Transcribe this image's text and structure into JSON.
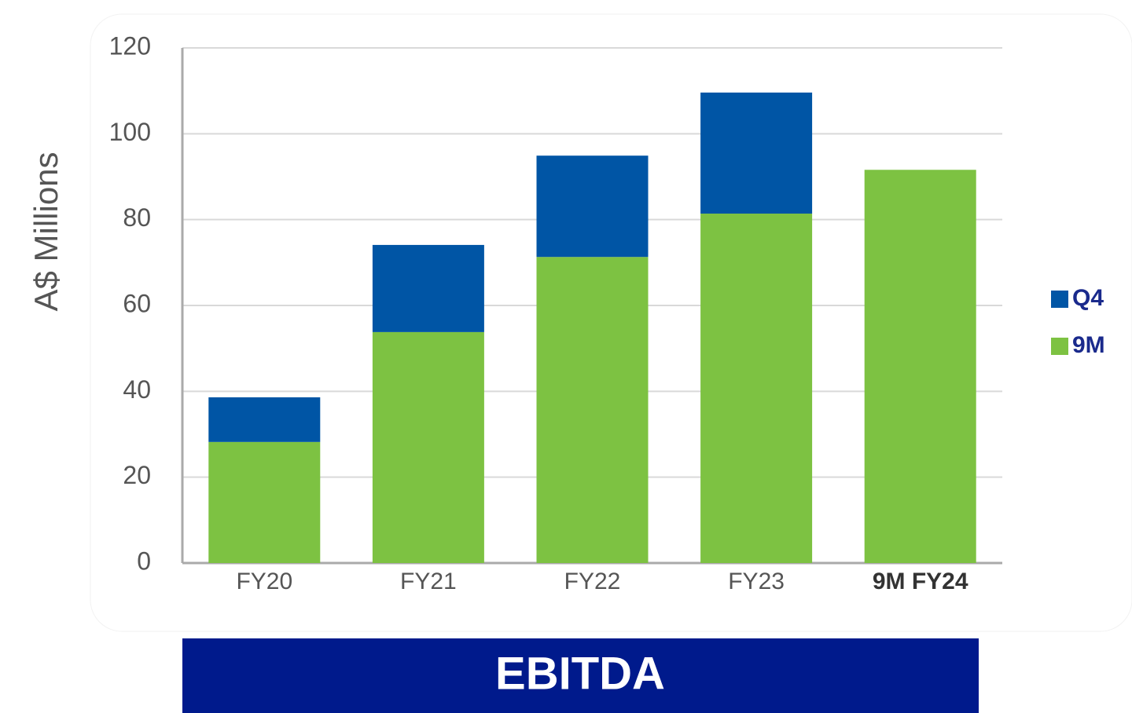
{
  "chart_data": {
    "type": "stacked_bar",
    "y_label": "A$ Millions",
    "categories": [
      "FY20",
      "FY21",
      "FY22",
      "FY23",
      "9M FY24"
    ],
    "series": [
      {
        "name": "9M",
        "color": "#7dc242",
        "values": [
          28.2,
          53.8,
          71.3,
          81.4,
          91.6
        ]
      },
      {
        "name": "Q4",
        "color": "#0055a5",
        "values": [
          10.4,
          20.3,
          23.6,
          28.2,
          null
        ]
      }
    ],
    "ylim": [
      0,
      120
    ],
    "yticks": [
      0,
      20,
      40,
      60,
      80,
      100,
      120
    ],
    "grid": true,
    "legend": "right",
    "banner": "EBITDA"
  }
}
